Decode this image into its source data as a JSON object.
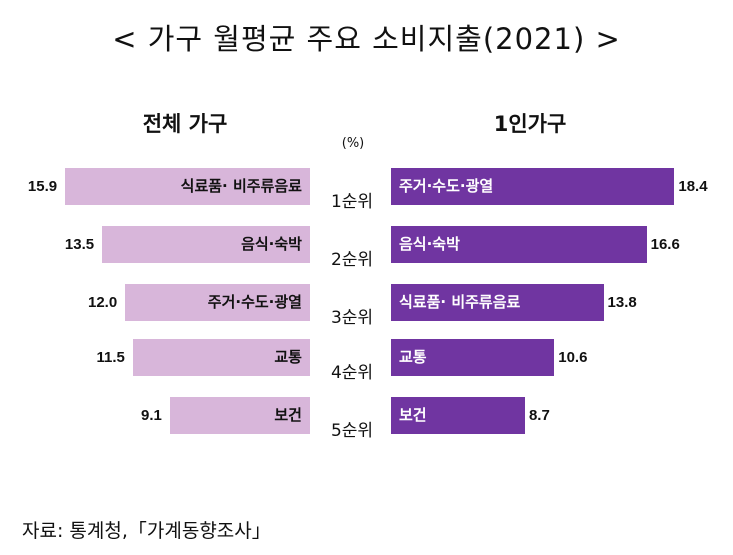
{
  "title": "< 가구 월평균 주요 소비지출(2021) >",
  "source": "자료: 통계청,「가계동향조사」",
  "chart_data": {
    "type": "bar",
    "unit": "(%)",
    "ranks": [
      "1순위",
      "2순위",
      "3순위",
      "4순위",
      "5순위"
    ],
    "xlim": [
      0,
      20
    ],
    "series": [
      {
        "name": "전체 가구",
        "categories": [
          "식료품· 비주류음료",
          "음식·숙박",
          "주거·수도·광열",
          "교통",
          "보건"
        ],
        "values": [
          15.9,
          13.5,
          12.0,
          11.5,
          9.1
        ],
        "labels": [
          "15.9",
          "13.5",
          "12.0",
          "11.5",
          "9.1"
        ],
        "color": "#d8b6da"
      },
      {
        "name": "1인가구",
        "categories": [
          "주거·수도·광열",
          "음식·숙박",
          "식료품· 비주류음료",
          "교통",
          "보건"
        ],
        "values": [
          18.4,
          16.6,
          13.8,
          10.6,
          8.7
        ],
        "labels": [
          "18.4",
          "16.6",
          "13.8",
          "10.6",
          "8.7"
        ],
        "color": "#7035a1"
      }
    ]
  }
}
